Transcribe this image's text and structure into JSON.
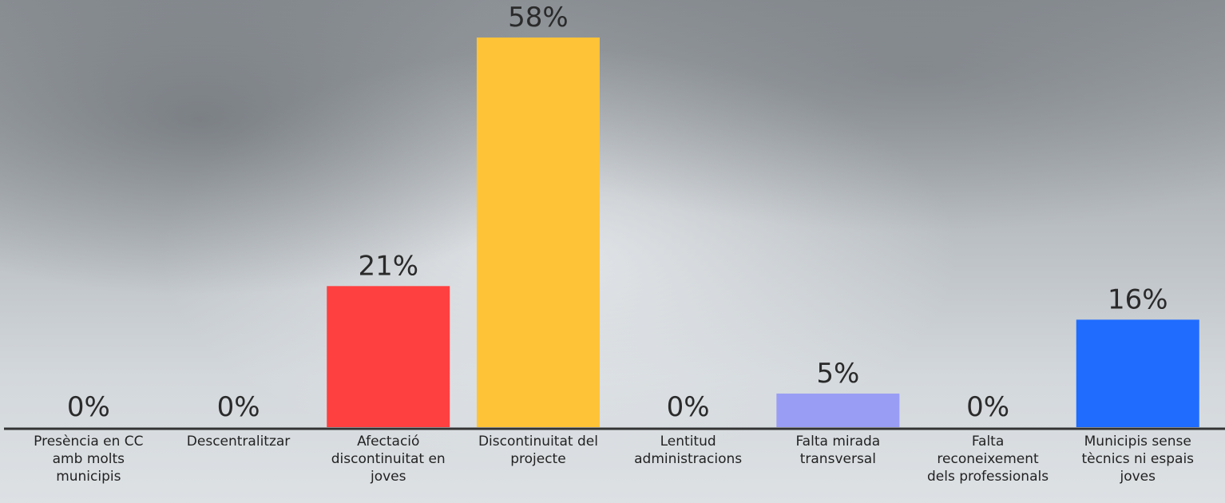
{
  "chart_data": {
    "type": "bar",
    "categories": [
      "Presència en CC amb molts municipis",
      "Descentralitzar",
      "Afectació discontinuitat en joves",
      "Discontinuitat del projecte",
      "Lentitud administracions",
      "Falta mirada transversal",
      "Falta reconeixement dels professionals",
      "Municipis sense tècnics ni espais joves"
    ],
    "values": [
      0,
      0,
      21,
      58,
      0,
      5,
      0,
      16
    ],
    "value_labels": [
      "0%",
      "0%",
      "21%",
      "58%",
      "0%",
      "5%",
      "0%",
      "16%"
    ],
    "colors": [
      null,
      null,
      "#ff4040",
      "#ffc338",
      null,
      "#9a9df4",
      null,
      "#1f6cff"
    ]
  }
}
